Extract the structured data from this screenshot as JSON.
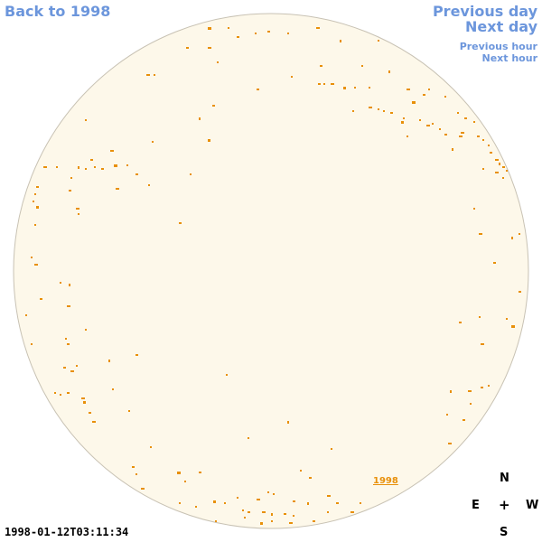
{
  "nav": {
    "back": "Back to 1998",
    "previous_day": "Previous day",
    "next_day": "Next day",
    "previous_hour": "Previous hour",
    "next_hour": "Next hour"
  },
  "image": {
    "year_link": "1998",
    "timestamp": "1998-01-12T03:11:34"
  },
  "compass": {
    "north": "N",
    "east": "E",
    "center": "+",
    "west": "W",
    "south": "S"
  },
  "colors": {
    "disk_fill": "#fdf8ea",
    "disk_outline": "#c8c2b4",
    "feature": "#e8900a",
    "link": "#6c96dc"
  }
}
